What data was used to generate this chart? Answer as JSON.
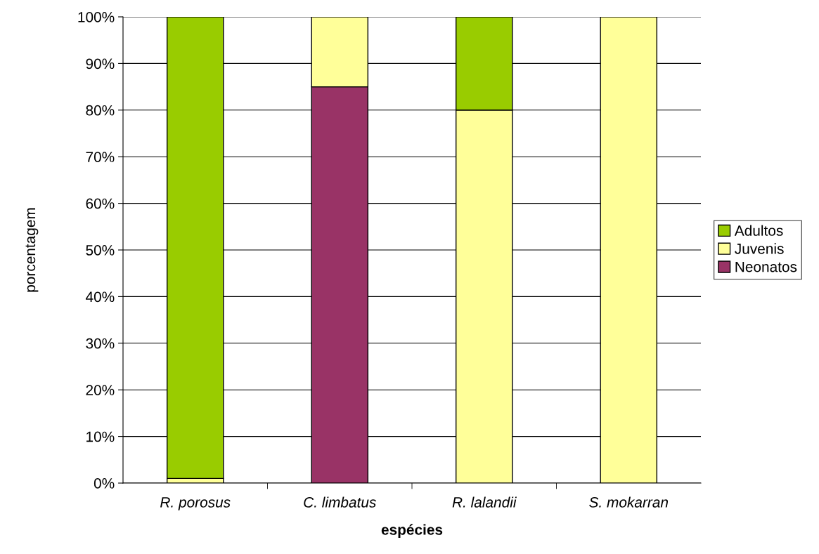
{
  "chart_data": {
    "type": "bar",
    "stacked": true,
    "xlabel": "espécies",
    "ylabel": "porcentagem",
    "categories": [
      "R. porosus",
      "C. limbatus",
      "R. lalandii",
      "S. mokarran"
    ],
    "series": [
      {
        "name": "Neonatos",
        "color": "#993366",
        "values": [
          null,
          85,
          null,
          null
        ]
      },
      {
        "name": "Juvenis",
        "color": "#ffff99",
        "values": [
          1,
          15,
          80,
          100
        ]
      },
      {
        "name": "Adultos",
        "color": "#99cc00",
        "values": [
          99,
          null,
          20,
          null
        ]
      }
    ],
    "ylim": [
      0,
      100
    ],
    "yticks": [
      {
        "value": 0,
        "label": "0%"
      },
      {
        "value": 10,
        "label": "10%"
      },
      {
        "value": 20,
        "label": "20%"
      },
      {
        "value": 30,
        "label": "30%"
      },
      {
        "value": 40,
        "label": "40%"
      },
      {
        "value": 50,
        "label": "50%"
      },
      {
        "value": 60,
        "label": "60%"
      },
      {
        "value": 70,
        "label": "70%"
      },
      {
        "value": 80,
        "label": "80%"
      },
      {
        "value": 90,
        "label": "90%"
      },
      {
        "value": 100,
        "label": "100%"
      }
    ],
    "grid": "y",
    "legend": "right"
  }
}
